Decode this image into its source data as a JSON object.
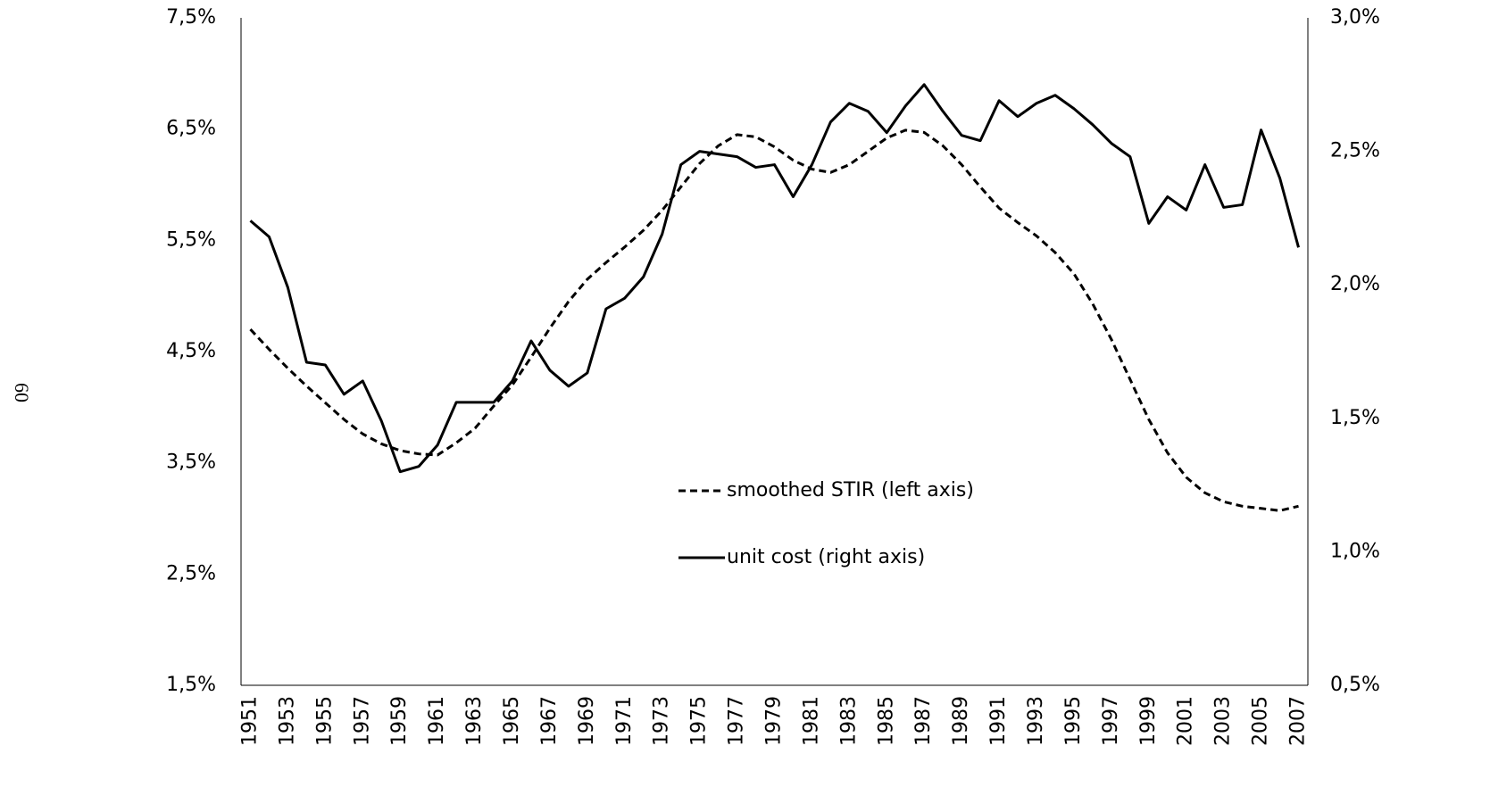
{
  "page_number": "60",
  "chart_data": {
    "type": "line",
    "x": [
      1951,
      1952,
      1953,
      1954,
      1955,
      1956,
      1957,
      1958,
      1959,
      1960,
      1961,
      1962,
      1963,
      1964,
      1965,
      1966,
      1967,
      1968,
      1969,
      1970,
      1971,
      1972,
      1973,
      1974,
      1975,
      1976,
      1977,
      1978,
      1979,
      1980,
      1981,
      1982,
      1983,
      1984,
      1985,
      1986,
      1987,
      1988,
      1989,
      1990,
      1991,
      1992,
      1993,
      1994,
      1995,
      1996,
      1997,
      1998,
      1999,
      2000,
      2001,
      2002,
      2003,
      2004,
      2005,
      2006,
      2007
    ],
    "xlim": [
      1950.5,
      2007.5
    ],
    "xticks": [
      1951,
      1953,
      1955,
      1957,
      1959,
      1961,
      1963,
      1965,
      1967,
      1969,
      1971,
      1973,
      1975,
      1977,
      1979,
      1981,
      1983,
      1985,
      1987,
      1989,
      1991,
      1993,
      1995,
      1997,
      1999,
      2001,
      2003,
      2005,
      2007
    ],
    "ylim": [
      1.5,
      7.5
    ],
    "yticks": [
      {
        "value": 1.5,
        "label": "1,5%"
      },
      {
        "value": 2.5,
        "label": "2,5%"
      },
      {
        "value": 3.5,
        "label": "3,5%"
      },
      {
        "value": 4.5,
        "label": "4,5%"
      },
      {
        "value": 5.5,
        "label": "5,5%"
      },
      {
        "value": 6.5,
        "label": "6,5%"
      },
      {
        "value": 7.5,
        "label": "7,5%"
      }
    ],
    "y2lim": [
      0.5,
      3.0
    ],
    "y2ticks": [
      {
        "value": 0.5,
        "label": "0,5%"
      },
      {
        "value": 1.0,
        "label": "1,0%"
      },
      {
        "value": 1.5,
        "label": "1,5%"
      },
      {
        "value": 2.0,
        "label": "2,0%"
      },
      {
        "value": 2.5,
        "label": "2,5%"
      },
      {
        "value": 3.0,
        "label": "3,0%"
      }
    ],
    "grid": false,
    "legend": "center",
    "series": [
      {
        "name": "smoothed STIR (left axis)",
        "color": "#000000",
        "dash": "dashed",
        "axis": "y",
        "values": [
          4.7,
          4.52,
          4.35,
          4.19,
          4.04,
          3.89,
          3.76,
          3.67,
          3.61,
          3.58,
          3.57,
          3.68,
          3.81,
          4.01,
          4.2,
          4.45,
          4.71,
          4.95,
          5.15,
          5.3,
          5.44,
          5.59,
          5.77,
          5.98,
          6.19,
          6.35,
          6.45,
          6.43,
          6.34,
          6.22,
          6.14,
          6.11,
          6.18,
          6.3,
          6.42,
          6.49,
          6.47,
          6.35,
          6.18,
          5.98,
          5.79,
          5.66,
          5.54,
          5.39,
          5.2,
          4.93,
          4.61,
          4.25,
          3.89,
          3.59,
          3.37,
          3.23,
          3.15,
          3.11,
          3.09,
          3.07,
          3.11
        ]
      },
      {
        "name": "unit cost (right axis)",
        "color": "#000000",
        "dash": "solid",
        "axis": "y2",
        "values": [
          2.24,
          2.18,
          1.99,
          1.71,
          1.7,
          1.59,
          1.64,
          1.49,
          1.3,
          1.32,
          1.4,
          1.56,
          1.56,
          1.56,
          1.64,
          1.79,
          1.68,
          1.62,
          1.67,
          1.91,
          1.95,
          2.03,
          2.19,
          2.45,
          2.5,
          2.49,
          2.48,
          2.44,
          2.45,
          2.33,
          2.45,
          2.61,
          2.68,
          2.65,
          2.57,
          2.67,
          2.75,
          2.65,
          2.56,
          2.54,
          2.69,
          2.63,
          2.68,
          2.71,
          2.66,
          2.6,
          2.53,
          2.48,
          2.23,
          2.33,
          2.28,
          2.45,
          2.29,
          2.3,
          2.58,
          2.4,
          2.14
        ]
      }
    ]
  }
}
